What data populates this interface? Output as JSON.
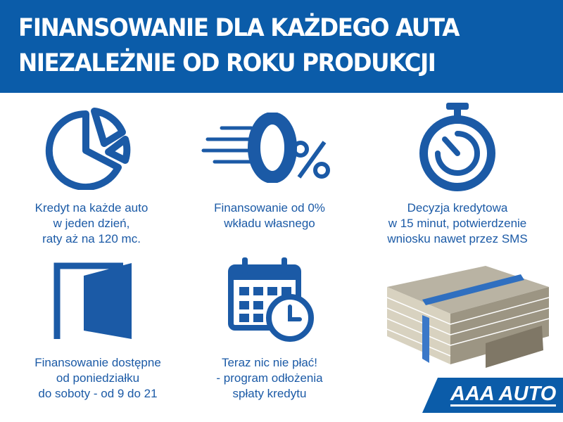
{
  "header": {
    "line1": "FINANSOWANIE DLA KAŻDEGO AUTA",
    "line2": "NIEZALEŻNIE OD ROKU PRODUKCJI"
  },
  "features": [
    {
      "icon": "pie-chart-icon",
      "lines": [
        "Kredyt na każde auto",
        "w jeden dzień,",
        "raty aż na 120 mc."
      ]
    },
    {
      "icon": "zero-percent-icon",
      "lines": [
        "Finansowanie od 0%",
        "wkładu własnego"
      ]
    },
    {
      "icon": "stopwatch-icon",
      "lines": [
        "Decyzja kredytowa",
        "w 15 minut, potwierdzenie",
        "wniosku nawet przez SMS"
      ]
    },
    {
      "icon": "open-door-icon",
      "lines": [
        "Finansowanie dostępne",
        "od poniedziałku",
        "do soboty - od 9 do 21"
      ]
    },
    {
      "icon": "calendar-clock-icon",
      "lines": [
        "Teraz nic nie płać!",
        "- program odłożenia",
        "spłaty kredytu"
      ]
    }
  ],
  "logo": {
    "text": "AAA AUTO"
  },
  "colors": {
    "brand_blue": "#0b5ca9",
    "text_blue": "#1b5aa6"
  }
}
